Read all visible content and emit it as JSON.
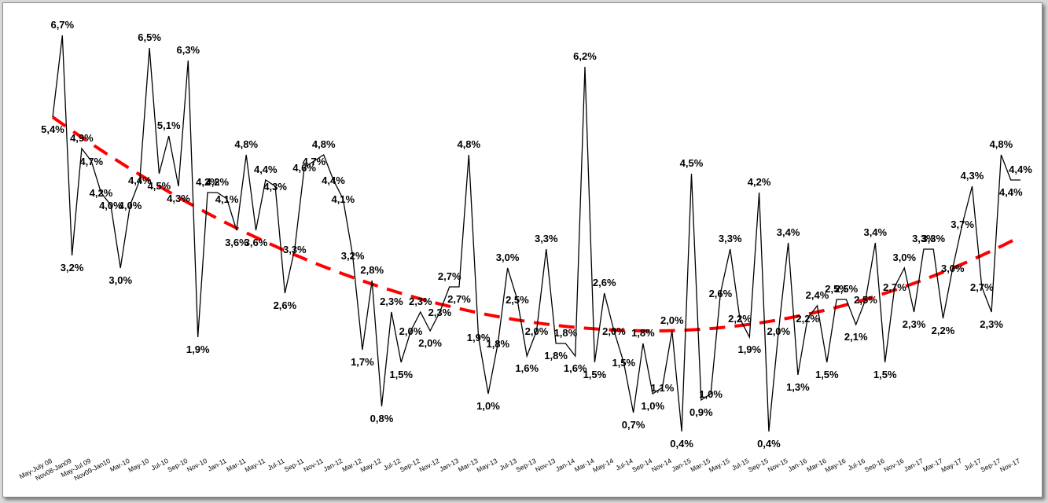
{
  "chart_data": {
    "type": "line",
    "title": "",
    "xlabel": "",
    "ylabel": "",
    "ylim": [
      0,
      7
    ],
    "grid": false,
    "legend": "none",
    "colors": {
      "series": "#000000",
      "trend": "#ff0000"
    },
    "x_tick_labels": [
      "May-July 08",
      "Nov08-Jan09",
      "May-Jul 09",
      "Nov09-Jan10",
      "Mar-10",
      "May-10",
      "Jul-10",
      "Sep-10",
      "Nov-10",
      "Jan-11",
      "Mar-11",
      "May-11",
      "Jul-11",
      "Sep-11",
      "Nov-11",
      "Jan-12",
      "Mar-12",
      "May-12",
      "Jul-12",
      "Sep-12",
      "Nov-12",
      "Jan-13",
      "Mar-13",
      "May-13",
      "Jul-13",
      "Sep-13",
      "Nov-13",
      "Jan-14",
      "Mar-14",
      "May-14",
      "Jul-14",
      "Sep-14",
      "Nov-14",
      "Jan-15",
      "Mar-15",
      "May-15",
      "Jul-15",
      "Sep-15",
      "Nov-15",
      "Jan-16",
      "Mar-16",
      "May-16",
      "Jul-16",
      "Sep-16",
      "Nov-16",
      "Jan-17",
      "Mar-17",
      "May-17",
      "Jul-17",
      "Sep-17",
      "Nov-17"
    ],
    "values": [
      5.4,
      6.7,
      3.2,
      4.9,
      4.7,
      4.2,
      4.0,
      3.0,
      4.0,
      4.4,
      6.5,
      4.5,
      5.1,
      4.3,
      6.3,
      1.9,
      4.2,
      4.2,
      4.1,
      3.6,
      4.8,
      3.6,
      4.4,
      4.3,
      2.6,
      3.3,
      4.6,
      4.7,
      4.8,
      4.4,
      4.1,
      3.2,
      1.7,
      2.8,
      0.8,
      2.3,
      1.5,
      2.0,
      2.3,
      2.0,
      2.3,
      2.7,
      2.7,
      4.8,
      1.9,
      1.0,
      1.8,
      3.0,
      2.5,
      1.6,
      2.0,
      3.3,
      1.8,
      1.8,
      1.6,
      6.2,
      1.5,
      2.6,
      2.0,
      1.5,
      0.7,
      1.8,
      1.0,
      1.1,
      2.0,
      0.4,
      4.5,
      0.9,
      1.0,
      2.6,
      3.3,
      2.2,
      1.9,
      4.2,
      0.4,
      2.0,
      3.4,
      1.3,
      2.2,
      2.4,
      1.5,
      2.5,
      2.5,
      2.1,
      2.5,
      3.4,
      1.5,
      2.7,
      3.0,
      2.3,
      3.3,
      3.3,
      2.2,
      3.0,
      3.7,
      4.3,
      2.7,
      2.3,
      4.8,
      4.4,
      4.4
    ],
    "data_labels": [
      "5,4%",
      "6,7%",
      "3,2%",
      "4,9%",
      "4,7%",
      "4,2%",
      "4,0%",
      "3,0%",
      "4,0%",
      "4,4%",
      "6,5%",
      "4,5%",
      "5,1%",
      "4,3%",
      "6,3%",
      "1,9%",
      "4,2%",
      "4,2%",
      "4,1%",
      "3,6%",
      "4,8%",
      "3,6%",
      "4,4%",
      "4,3%",
      "2,6%",
      "3,3%",
      "4,6%",
      "4,7%",
      "4,8%",
      "4,4%",
      "4,1%",
      "3,2%",
      "1,7%",
      "2,8%",
      "0,8%",
      "2,3%",
      "1,5%",
      "2,0%",
      "2,3%",
      "2,0%",
      "2,3%",
      "2,7%",
      "2,7%",
      "4,8%",
      "1,9%",
      "1,0%",
      "1,8%",
      "3,0%",
      "2,5%",
      "1,6%",
      "2,0%",
      "3,3%",
      "1,8%",
      "1,8%",
      "1,6%",
      "6,2%",
      "1,5%",
      "2,6%",
      "2,0%",
      "1,5%",
      "0,7%",
      "1,8%",
      "1,0%",
      "1,1%",
      "2,0%",
      "0,4%",
      "4,5%",
      "0,9%",
      "1,0%",
      "2,6%",
      "3,3%",
      "2,2%",
      "1,9%",
      "4,2%",
      "0,4%",
      "2,0%",
      "3,4%",
      "1,3%",
      "2,2%",
      "2,4%",
      "1,5%",
      "2,5%",
      "2,5%",
      "2,1%",
      "2,5%",
      "3,4%",
      "1,5%",
      "2,7%",
      "3,0%",
      "2,3%",
      "3,3%",
      "3,3%",
      "2,2%",
      "3,0%",
      "3,7%",
      "4,3%",
      "2,7%",
      "2,3%",
      "4,8%",
      "4,4%",
      "4,4%"
    ],
    "trend": {
      "type": "polynomial",
      "start": 5.4,
      "min": 2.0,
      "end": 3.5
    }
  }
}
